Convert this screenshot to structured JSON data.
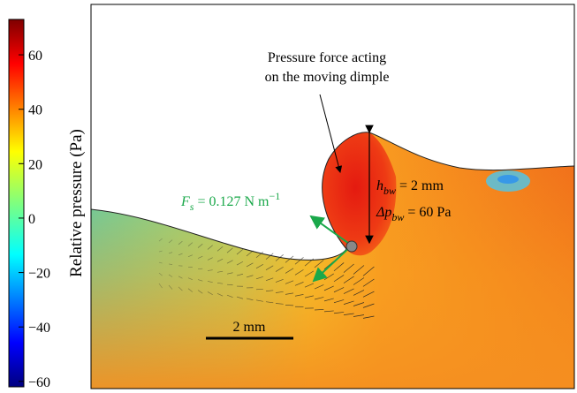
{
  "chart_data": {
    "type": "colorfield",
    "colorbar_label": "Relative pressure (Pa)",
    "clim": [
      -62,
      73
    ],
    "cticks": [
      60,
      40,
      20,
      0,
      {
        "value": -20,
        "label": "−20"
      },
      {
        "value": -40,
        "label": "−40"
      },
      {
        "value": -60,
        "label": "−60"
      }
    ],
    "annotations": {
      "force_note": [
        "Pressure force acting",
        "on the moving dimple"
      ],
      "scale_bar": "2 mm",
      "surface_tension": {
        "symbol": "F",
        "subscript": "s",
        "text": " = 0.127 N m",
        "superscript": "−1"
      },
      "height": {
        "symbol": "h",
        "subscript": "bw",
        "text": " = 2 mm"
      },
      "pressure_jump": {
        "symbol": "Δp",
        "subscript": "bw",
        "text": " = 60 Pa"
      }
    }
  }
}
